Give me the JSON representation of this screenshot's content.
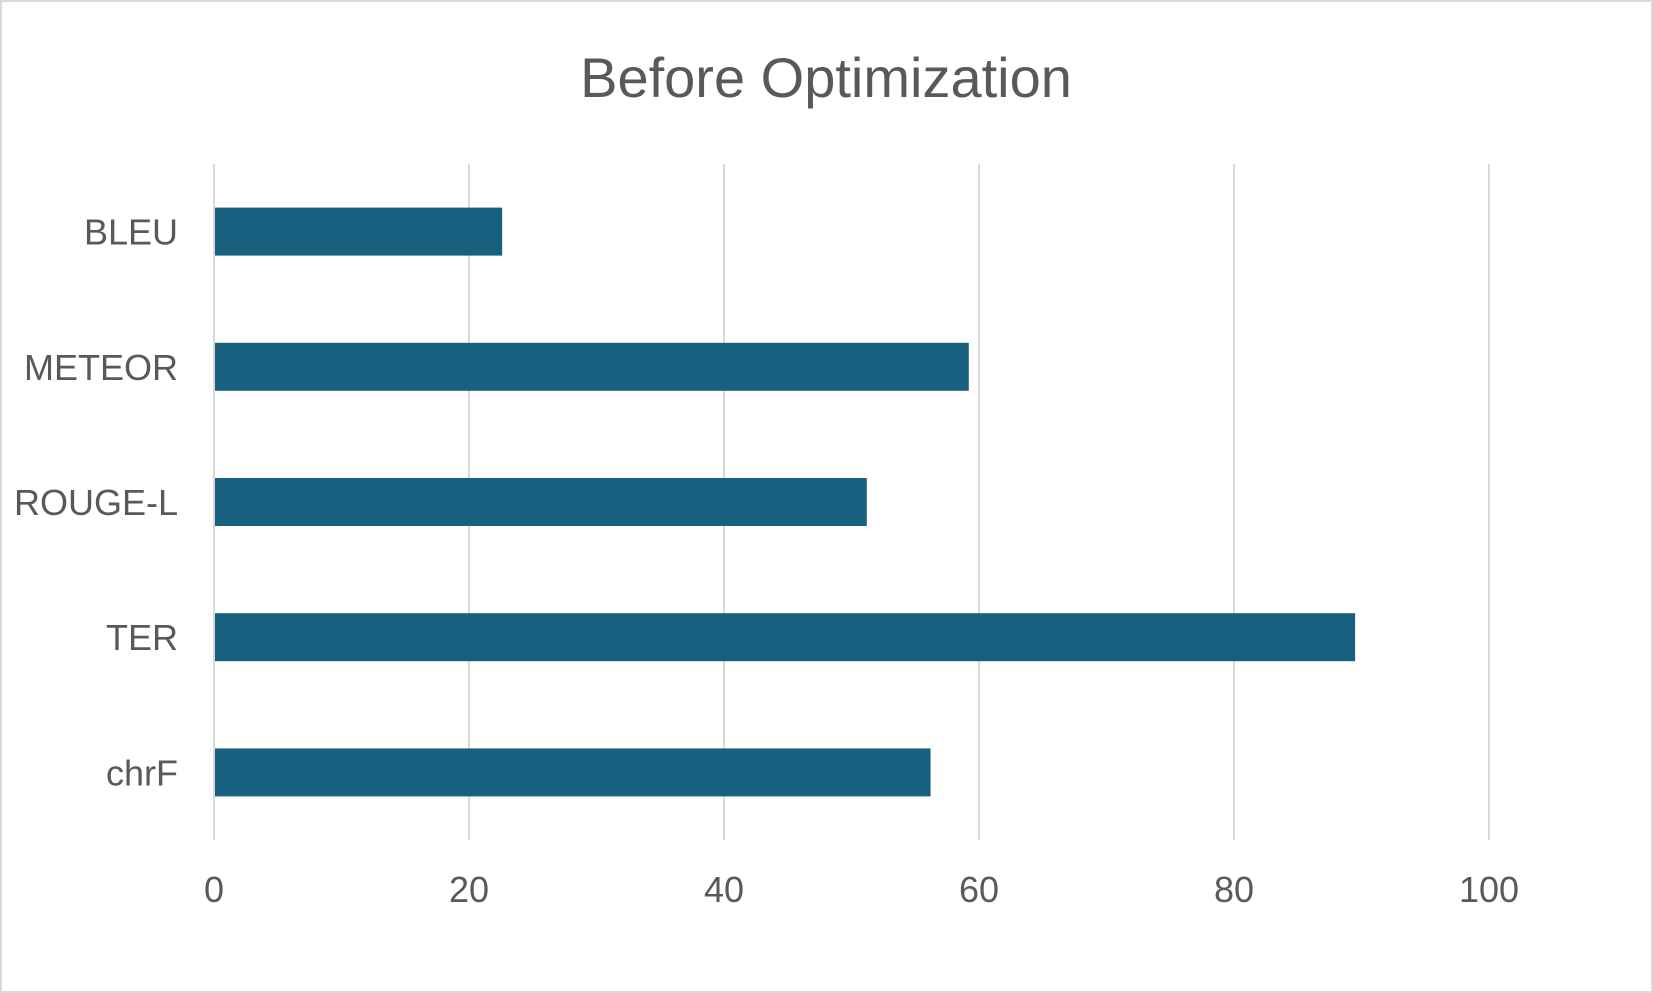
{
  "chart_data": {
    "type": "bar",
    "orientation": "horizontal",
    "title": "Before Optimization",
    "categories": [
      "BLEU",
      "METEOR",
      "ROUGE-L",
      "TER",
      "chrF"
    ],
    "values": [
      22.6,
      59.2,
      51.2,
      89.5,
      56.2
    ],
    "xlim": [
      0,
      100
    ],
    "xticks": [
      "0",
      "20",
      "40",
      "60",
      "80",
      "100"
    ],
    "xlabel": "",
    "ylabel": "",
    "grid": "vertical",
    "legend": "none",
    "bar_color": "#17607f",
    "grid_color": "#d9d9d9",
    "text_color": "#595959"
  }
}
